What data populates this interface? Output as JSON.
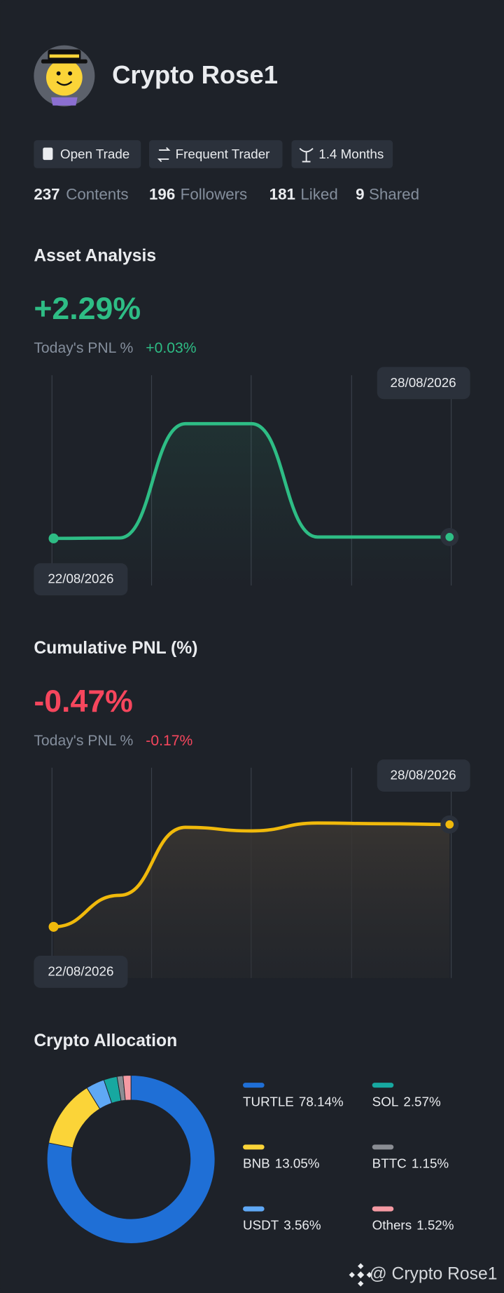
{
  "profile": {
    "name": "Crypto Rose1",
    "badges": [
      "Open Trade",
      "Frequent Trader",
      "1.4 Months"
    ],
    "stats": [
      {
        "value": 237,
        "label": "Contents"
      },
      {
        "value": 196,
        "label": "Followers"
      },
      {
        "value": 181,
        "label": "Liked"
      },
      {
        "value": 9,
        "label": "Shared"
      }
    ]
  },
  "charts": [
    {
      "type": "line",
      "title": "Asset Analysis",
      "headline": "+2.29%",
      "headline_color": "#2ebd85",
      "subtitle": "Today's PNL %",
      "change": "+0.03%",
      "color": "#2ebd85",
      "categories": [
        "22/08/2026",
        null,
        null,
        null,
        null,
        null,
        "28/08/2026"
      ],
      "values": [
        2.26,
        2.27,
        4.8,
        4.8,
        2.29,
        2.29,
        2.29
      ],
      "ylim": [
        1.4,
        5.6
      ]
    },
    {
      "type": "line",
      "title": "Cumulative PNL (%)",
      "headline": "-0.47%",
      "headline_color": "#f6465d",
      "subtitle": "Today's PNL %",
      "change": "-0.17%",
      "color": "#f0b90b",
      "categories": [
        "22/08/2026",
        null,
        null,
        null,
        null,
        null,
        "28/08/2026"
      ],
      "values": [
        -1.9,
        -1.46,
        -0.51,
        -0.56,
        -0.45,
        -0.46,
        -0.47
      ],
      "ylim": [
        -2.5,
        0.15
      ]
    },
    {
      "type": "donut",
      "title": "Crypto Allocation",
      "categories": [
        "TURTLE",
        "BNB",
        "USDT",
        "SOL",
        "BTTC",
        "Others"
      ],
      "values": [
        78.14,
        13.05,
        3.56,
        2.57,
        1.15,
        1.52
      ],
      "value_labels": [
        "78.14%",
        "13.05%",
        "3.56%",
        "2.57%",
        "1.15%",
        "1.52%"
      ],
      "colors": [
        "#1f6fd6",
        "#fbd438",
        "#5fa8f5",
        "#17a8a0",
        "#8a8d93",
        "#f59aa3"
      ]
    }
  ],
  "footer": {
    "text": "@ Crypto Rose1"
  }
}
